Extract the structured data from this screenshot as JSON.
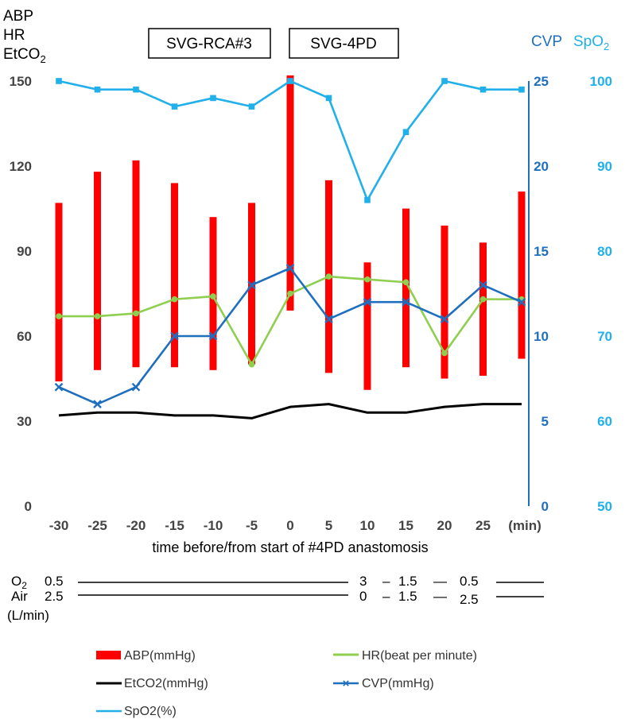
{
  "chart_data": {
    "type": "line",
    "title": "",
    "xlabel": "time before/from start of #4PD anastomosis",
    "x_unit": "(min)",
    "x": [
      -30,
      -25,
      -20,
      -15,
      -10,
      -5,
      0,
      5,
      10,
      15,
      20,
      25,
      30
    ],
    "x_tick_labels": [
      "-30",
      "-25",
      "-20",
      "-15",
      "-10",
      "-5",
      "0",
      "5",
      "10",
      "15",
      "20",
      "25"
    ],
    "y_left": {
      "label_lines": [
        "ABP",
        "HR",
        "EtCO"
      ],
      "label_sub": "2",
      "range": [
        0,
        150
      ],
      "ticks": [
        "0",
        "30",
        "60",
        "90",
        "120",
        "150"
      ]
    },
    "y_cvp": {
      "label": "CVP",
      "range": [
        0,
        25
      ],
      "ticks": [
        "0",
        "5",
        "10",
        "15",
        "20",
        "25"
      ]
    },
    "y_spo2": {
      "label": "SpO",
      "label_sub": "2",
      "range": [
        50,
        100
      ],
      "ticks": [
        "50",
        "60",
        "70",
        "80",
        "90",
        "100"
      ]
    },
    "phase_boxes": [
      "SVG-RCA#3",
      "SVG-4PD"
    ],
    "series": [
      {
        "name": "ABP(mmHg)",
        "type": "range_bar",
        "color": "#ff0000",
        "low": [
          44,
          48,
          49,
          49,
          48,
          50,
          69,
          47,
          41,
          49,
          45,
          46,
          52
        ],
        "high": [
          107,
          118,
          122,
          114,
          102,
          107,
          152,
          115,
          86,
          105,
          99,
          93,
          111
        ]
      },
      {
        "name": "HR(beat per minute)",
        "color": "#8fcf4f",
        "values": [
          67,
          67,
          68,
          73,
          74,
          50,
          75,
          81,
          80,
          79,
          54,
          73,
          73
        ]
      },
      {
        "name": "EtCO2(mmHg)",
        "color": "#000000",
        "values": [
          32,
          33,
          33,
          32,
          32,
          31,
          35,
          36,
          33,
          33,
          35,
          36,
          36
        ]
      },
      {
        "name": "CVP(mmHg)",
        "color": "#1f6fbf",
        "axis": "cvp",
        "values": [
          7,
          6,
          7,
          10,
          10,
          13,
          14,
          11,
          12,
          12,
          11,
          13,
          12
        ]
      },
      {
        "name": "SpO2(%)",
        "color": "#21b0ea",
        "axis": "spo2",
        "values": [
          100,
          99,
          99,
          97,
          98,
          97,
          100,
          98,
          86,
          94,
          100,
          99,
          99
        ]
      }
    ],
    "gas_flow": {
      "unit": "(L/min)",
      "o2": {
        "label": "O",
        "sub": "2",
        "values": [
          "0.5",
          "3",
          "1.5",
          "0.5"
        ]
      },
      "air": {
        "label": "Air",
        "values": [
          "2.5",
          "0",
          "1.5",
          "2.5"
        ]
      },
      "dash": "–",
      "long_dash": "—"
    }
  }
}
